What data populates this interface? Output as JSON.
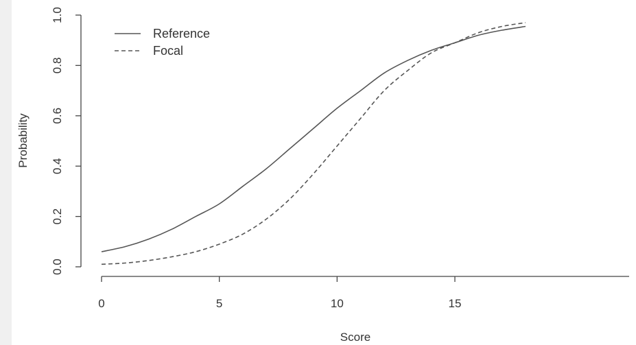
{
  "chart_data": {
    "type": "line",
    "title": "",
    "xlabel": "Score",
    "ylabel": "Probability",
    "xlim": [
      0,
      18
    ],
    "ylim": [
      0,
      1
    ],
    "x_ticks": [
      "0",
      "5",
      "10",
      "15"
    ],
    "y_ticks": [
      "0.0",
      "0.2",
      "0.4",
      "0.6",
      "0.8",
      "1.0"
    ],
    "x": [
      0,
      1,
      2,
      3,
      4,
      5,
      6,
      7,
      8,
      9,
      10,
      11,
      12,
      13,
      14,
      15,
      16,
      17,
      18
    ],
    "series": [
      {
        "name": "Reference",
        "line_style": "solid",
        "values": [
          0.06,
          0.08,
          0.11,
          0.15,
          0.2,
          0.25,
          0.32,
          0.39,
          0.47,
          0.55,
          0.63,
          0.7,
          0.77,
          0.82,
          0.86,
          0.89,
          0.92,
          0.94,
          0.955
        ]
      },
      {
        "name": "Focal",
        "line_style": "dashed",
        "values": [
          0.01,
          0.015,
          0.025,
          0.04,
          0.06,
          0.09,
          0.13,
          0.19,
          0.27,
          0.37,
          0.48,
          0.59,
          0.7,
          0.78,
          0.85,
          0.89,
          0.93,
          0.955,
          0.97
        ]
      }
    ],
    "legend_position": "top-left",
    "grid": false
  }
}
